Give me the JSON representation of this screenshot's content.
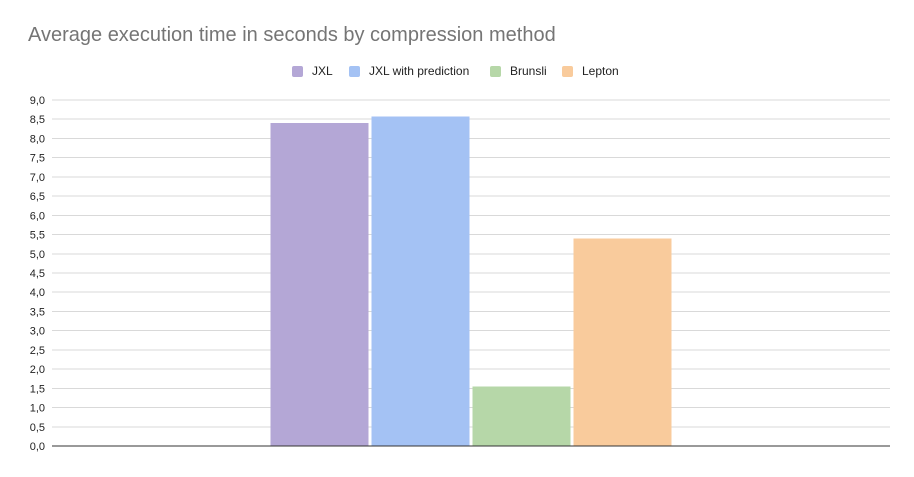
{
  "chart_data": {
    "type": "bar",
    "title": "Average execution time in seconds by compression method",
    "xlabel": "",
    "ylabel": "",
    "categories": [
      ""
    ],
    "ylim": [
      0,
      9.0
    ],
    "ytick_step": 0.5,
    "ytick_labels": [
      "0,0",
      "0,5",
      "1,0",
      "1,5",
      "2,0",
      "2,5",
      "3,0",
      "3,5",
      "4,0",
      "4,5",
      "5,0",
      "5,5",
      "6,0",
      "6,5",
      "7,0",
      "7,5",
      "8,0",
      "8,5",
      "9,0"
    ],
    "grid": true,
    "legend_position": "top",
    "series": [
      {
        "name": "JXL",
        "values": [
          8.4
        ],
        "color": "#b4a7d6"
      },
      {
        "name": "JXL with prediction",
        "values": [
          8.57
        ],
        "color": "#a4c2f4"
      },
      {
        "name": "Brunsli",
        "values": [
          1.55
        ],
        "color": "#b6d7a8"
      },
      {
        "name": "Lepton",
        "values": [
          5.4
        ],
        "color": "#f9cb9c"
      }
    ]
  }
}
